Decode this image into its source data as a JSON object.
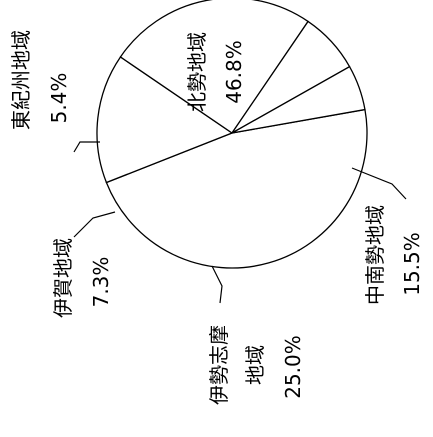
{
  "chart_data": {
    "type": "pie",
    "title": "",
    "slices": [
      {
        "name": "北勢地域",
        "value": 46.8,
        "label": "46.8%"
      },
      {
        "name": "中南勢地域",
        "value": 15.5,
        "label": "15.5%"
      },
      {
        "name": "伊勢志摩地域",
        "value": 25.0,
        "label": "25.0%"
      },
      {
        "name": "伊賀地域",
        "value": 7.3,
        "label": "7.3%"
      },
      {
        "name": "東紀州地域",
        "value": 5.4,
        "label": "5.4%"
      }
    ],
    "label_text": {
      "hokusei_name": "北勢地域",
      "hokusei_pct": "46.8%",
      "chunansei_name": "中南勢地域",
      "chunansei_pct": "15.5%",
      "iseshima_name_1": "伊勢志摩",
      "iseshima_name_2": "地域",
      "iseshima_pct": "25.0%",
      "iga_name": "伊賀地域",
      "iga_pct": "7.3%",
      "higashikishu_name": "東紀州地域",
      "higashikishu_pct": "5.4%"
    },
    "colors": {
      "line": "#000000",
      "fill": "#ffffff"
    },
    "legend": "none",
    "orientation": "rotated 90° clockwise"
  }
}
